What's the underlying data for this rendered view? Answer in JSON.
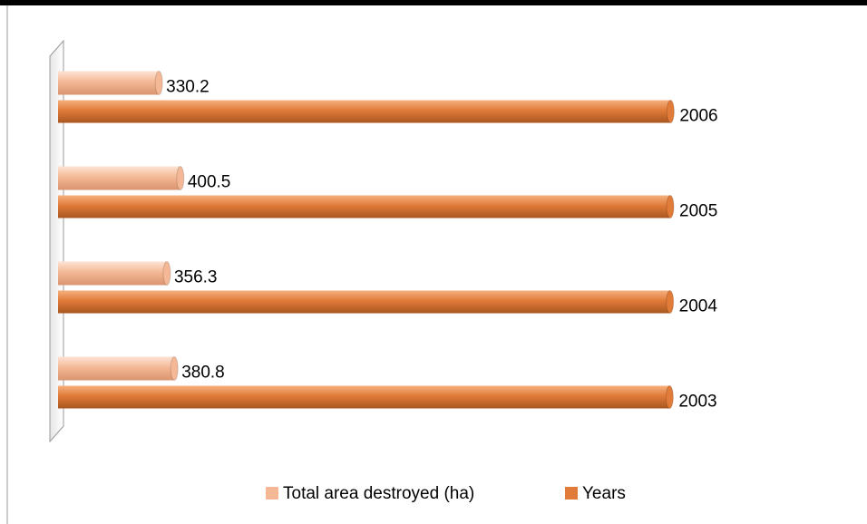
{
  "chart_data": {
    "type": "bar",
    "orientation": "horizontal",
    "categories": [
      null,
      null,
      null,
      null
    ],
    "series": [
      {
        "name": "Total area destroyed (ha)",
        "color": "#f4b896",
        "values": [
          380.8,
          356.3,
          400.5,
          330.2
        ]
      },
      {
        "name": "Years",
        "color": "#e07b39",
        "values": [
          2003,
          2004,
          2005,
          2006
        ]
      }
    ],
    "xlim": [
      0,
      2400
    ],
    "legend": "bottom"
  }
}
